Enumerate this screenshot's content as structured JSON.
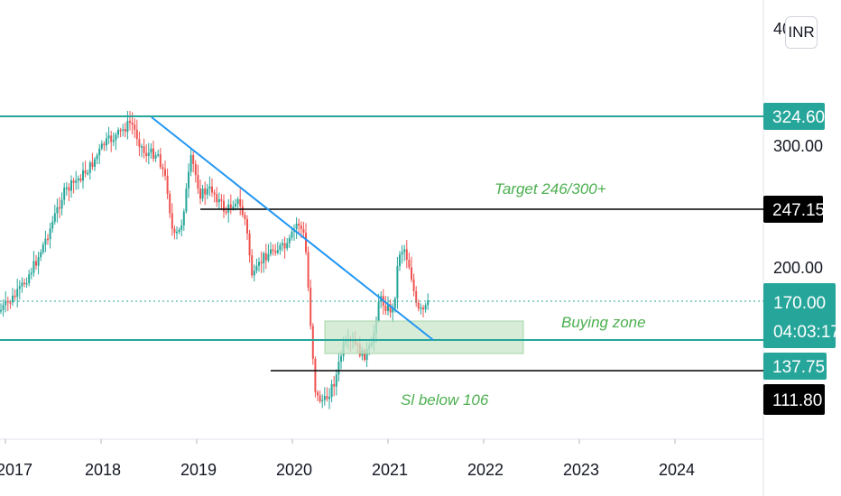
{
  "chart_data": {
    "type": "candlestick",
    "price_scale": {
      "top_label_partial": "40",
      "ticks": [
        "300.00",
        "200.00"
      ]
    },
    "time_axis": {
      "labels": [
        "2017",
        "2018",
        "2019",
        "2020",
        "2021",
        "2022",
        "2023",
        "2024"
      ]
    },
    "levels": [
      {
        "name": "resistance",
        "value": "324.60",
        "color": "#26a69a"
      },
      {
        "name": "target-line",
        "value": "247.15",
        "color": "#000000"
      },
      {
        "name": "last-price",
        "value": "170.00",
        "color": "#26a69a"
      },
      {
        "name": "support",
        "value": "137.75",
        "color": "#26a69a"
      },
      {
        "name": "stop-loss-line",
        "value": "111.80",
        "color": "#000000"
      }
    ],
    "countdown": "04:03:17",
    "currency": "INR",
    "annotations": {
      "target": "Target 246/300+",
      "buying_zone": "Buying zone",
      "stop_loss": "Sl below 106"
    },
    "colors": {
      "up": "#26a69a",
      "down": "#ef5350",
      "trendline": "#2196f3",
      "zone": "#c8e6c9",
      "annotation": "#4caf50"
    }
  }
}
